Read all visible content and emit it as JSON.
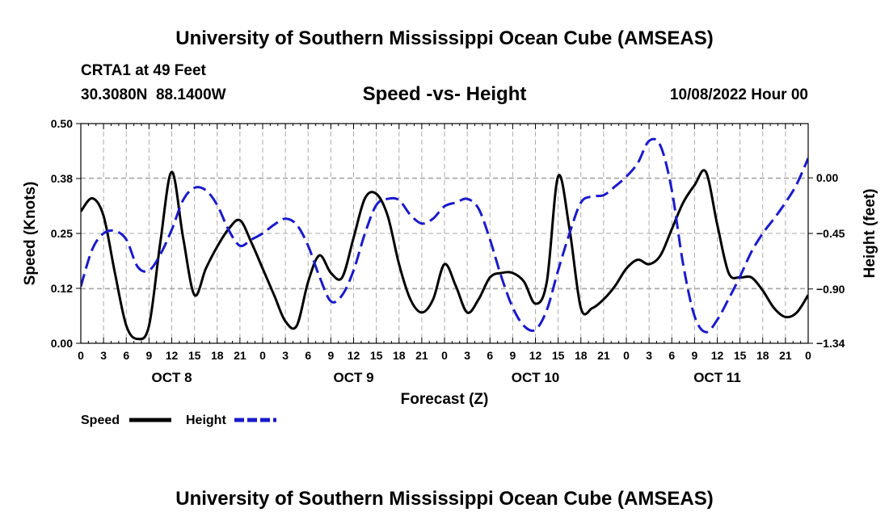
{
  "header": {
    "title": "University of Southern Mississippi Ocean Cube (AMSEAS)",
    "station": "CRTA1 at 49 Feet",
    "coords": "30.3080N  88.1400W",
    "subtitle": "Speed -vs- Height",
    "datetime": "10/08/2022 Hour 00"
  },
  "footer": {
    "title": "University of Southern Mississippi Ocean Cube (AMSEAS)"
  },
  "legend": {
    "speed_label": "Speed",
    "height_label": "Height"
  },
  "colors": {
    "speed": "#000000",
    "height": "#1a1acc",
    "grid": "#aaaaaa"
  },
  "chart_data": {
    "type": "line",
    "title": "Speed -vs- Height",
    "xlabel": "Forecast (Z)",
    "ylabel": "Speed (Knots)",
    "y2label": "Height (feet)",
    "xlim": [
      0,
      96
    ],
    "ylim": [
      0.0,
      0.5
    ],
    "y2lim": [
      -1.34,
      0.44
    ],
    "grid": true,
    "legend_position": "bottom-left",
    "x_ticks": [
      0,
      3,
      6,
      9,
      12,
      15,
      18,
      21,
      24,
      27,
      30,
      33,
      36,
      39,
      42,
      45,
      48,
      51,
      54,
      57,
      60,
      63,
      66,
      69,
      72,
      75,
      78,
      81,
      84,
      87,
      90,
      93,
      96
    ],
    "x_tick_labels": [
      "0",
      "3",
      "6",
      "9",
      "12",
      "15",
      "18",
      "21",
      "0",
      "3",
      "6",
      "9",
      "12",
      "15",
      "18",
      "21",
      "0",
      "3",
      "6",
      "9",
      "12",
      "15",
      "18",
      "21",
      "0",
      "3",
      "6",
      "9",
      "12",
      "15",
      "18",
      "21",
      "0"
    ],
    "y_ticks": [
      0.0,
      0.125,
      0.25,
      0.375,
      0.5
    ],
    "y_tick_labels": [
      "0.00",
      "0.12",
      "0.25",
      "0.38",
      "0.50"
    ],
    "y2_ticks": [
      -1.34,
      -0.9,
      -0.45,
      0.0
    ],
    "y2_tick_labels": [
      "−1.34",
      "−0.90",
      "−0.45",
      "0.00"
    ],
    "day_labels": [
      {
        "hour": 12,
        "label": "OCT 8"
      },
      {
        "hour": 36,
        "label": "OCT 9"
      },
      {
        "hour": 60,
        "label": "OCT 10"
      },
      {
        "hour": 84,
        "label": "OCT 11"
      }
    ],
    "series": [
      {
        "name": "Speed",
        "axis": "left",
        "style": "solid",
        "x": [
          0,
          1.5,
          3,
          4.5,
          6,
          7.5,
          9,
          10.5,
          12,
          13.5,
          15,
          16.5,
          18,
          19.5,
          21,
          22.5,
          24,
          25.5,
          27,
          28.5,
          30,
          31.5,
          33,
          34.5,
          36,
          37.5,
          39,
          40.5,
          42,
          43.5,
          45,
          46.5,
          48,
          49.5,
          51,
          52.5,
          54,
          55.5,
          57,
          58.5,
          60,
          61.5,
          63,
          64.5,
          66,
          67.5,
          69,
          70.5,
          72,
          73.5,
          75,
          76.5,
          78,
          79.5,
          81,
          82.5,
          84,
          85.5,
          87,
          88.5,
          90,
          91.5,
          93,
          94.5,
          96
        ],
        "values": [
          0.3,
          0.33,
          0.29,
          0.16,
          0.04,
          0.01,
          0.04,
          0.23,
          0.39,
          0.24,
          0.11,
          0.17,
          0.22,
          0.26,
          0.28,
          0.23,
          0.17,
          0.11,
          0.05,
          0.04,
          0.14,
          0.2,
          0.16,
          0.15,
          0.24,
          0.33,
          0.34,
          0.29,
          0.18,
          0.1,
          0.07,
          0.1,
          0.18,
          0.13,
          0.07,
          0.1,
          0.15,
          0.16,
          0.16,
          0.14,
          0.09,
          0.14,
          0.38,
          0.26,
          0.08,
          0.08,
          0.1,
          0.13,
          0.17,
          0.19,
          0.18,
          0.2,
          0.26,
          0.32,
          0.36,
          0.39,
          0.27,
          0.16,
          0.15,
          0.15,
          0.12,
          0.08,
          0.06,
          0.07,
          0.11
        ]
      },
      {
        "name": "Height",
        "axis": "right",
        "style": "dashed",
        "x": [
          0,
          1.5,
          3,
          4.5,
          6,
          7.5,
          9,
          10.5,
          12,
          13.5,
          15,
          16.5,
          18,
          19.5,
          21,
          22.5,
          24,
          25.5,
          27,
          28.5,
          30,
          31.5,
          33,
          34.5,
          36,
          37.5,
          39,
          40.5,
          42,
          43.5,
          45,
          46.5,
          48,
          49.5,
          51,
          52.5,
          54,
          55.5,
          57,
          58.5,
          60,
          61.5,
          63,
          64.5,
          66,
          67.5,
          69,
          70.5,
          72,
          73.5,
          75,
          76.5,
          78,
          79.5,
          81,
          82.5,
          84,
          85.5,
          87,
          88.5,
          90,
          91.5,
          93,
          94.5,
          96
        ],
        "values": [
          -0.88,
          -0.58,
          -0.45,
          -0.43,
          -0.5,
          -0.72,
          -0.75,
          -0.62,
          -0.42,
          -0.18,
          -0.08,
          -0.1,
          -0.22,
          -0.42,
          -0.55,
          -0.5,
          -0.45,
          -0.38,
          -0.33,
          -0.38,
          -0.55,
          -0.8,
          -1.0,
          -0.95,
          -0.75,
          -0.45,
          -0.22,
          -0.17,
          -0.18,
          -0.3,
          -0.37,
          -0.33,
          -0.23,
          -0.2,
          -0.17,
          -0.25,
          -0.5,
          -0.8,
          -1.05,
          -1.2,
          -1.23,
          -1.07,
          -0.75,
          -0.45,
          -0.2,
          -0.15,
          -0.14,
          -0.07,
          0.01,
          0.12,
          0.3,
          0.26,
          -0.1,
          -0.7,
          -1.12,
          -1.25,
          -1.15,
          -0.98,
          -0.8,
          -0.6,
          -0.45,
          -0.33,
          -0.2,
          -0.05,
          0.16
        ]
      }
    ]
  }
}
